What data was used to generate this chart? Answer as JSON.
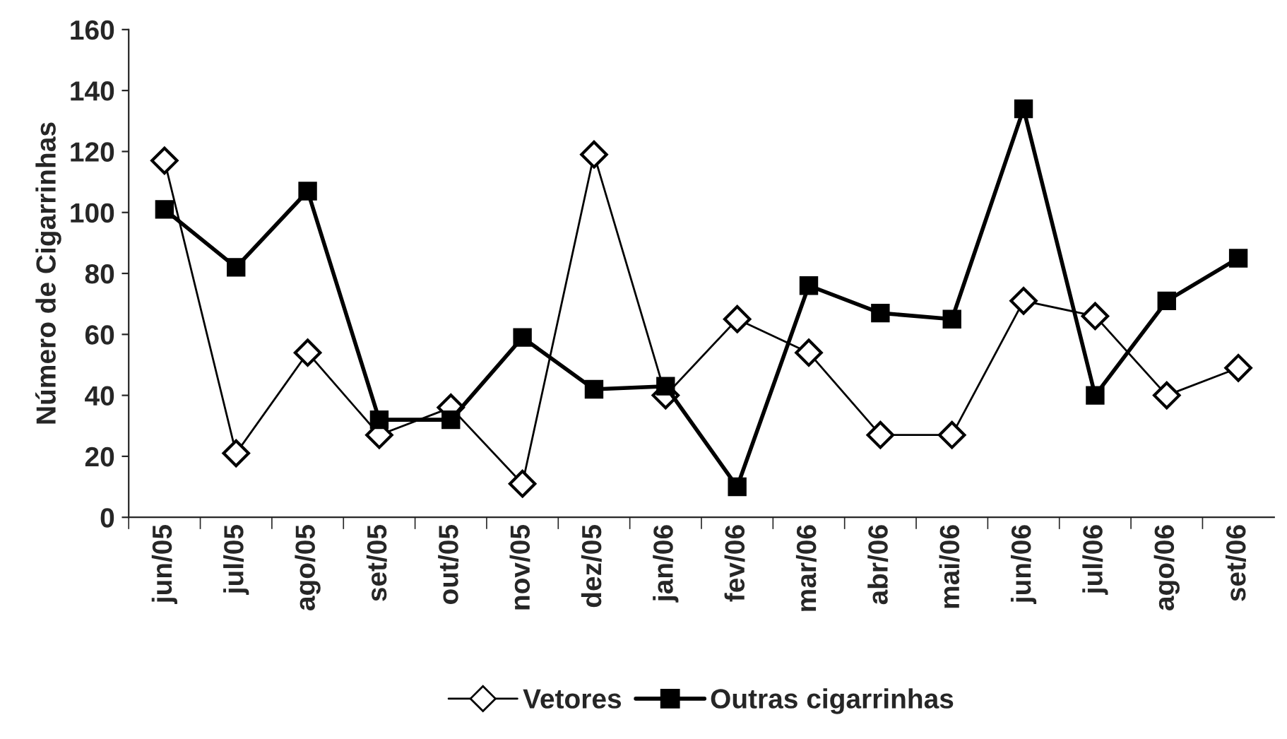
{
  "chart_data": {
    "type": "line",
    "ylabel": "Número de Cigarrinhas",
    "categories": [
      "jun/05",
      "jul/05",
      "ago/05",
      "set/05",
      "out/05",
      "nov/05",
      "dez/05",
      "jan/06",
      "fev/06",
      "mar/06",
      "abr/06",
      "mai/06",
      "jun/06",
      "jul/06",
      "ago/06",
      "set/06"
    ],
    "series": [
      {
        "name": "Vetores",
        "color": "#000000",
        "marker": "diamond",
        "values": [
          117,
          21,
          54,
          27,
          36,
          11,
          119,
          40,
          65,
          54,
          27,
          27,
          71,
          66,
          40,
          49
        ]
      },
      {
        "name": "Outras cigarrinhas",
        "color": "#000000",
        "marker": "square",
        "values": [
          101,
          82,
          107,
          32,
          32,
          59,
          42,
          43,
          10,
          76,
          67,
          65,
          134,
          40,
          71,
          85
        ]
      }
    ],
    "ylim": [
      0,
      160
    ],
    "yticks": [
      0,
      20,
      40,
      60,
      80,
      100,
      120,
      140,
      160
    ],
    "grid": false,
    "legend": "bottom"
  }
}
